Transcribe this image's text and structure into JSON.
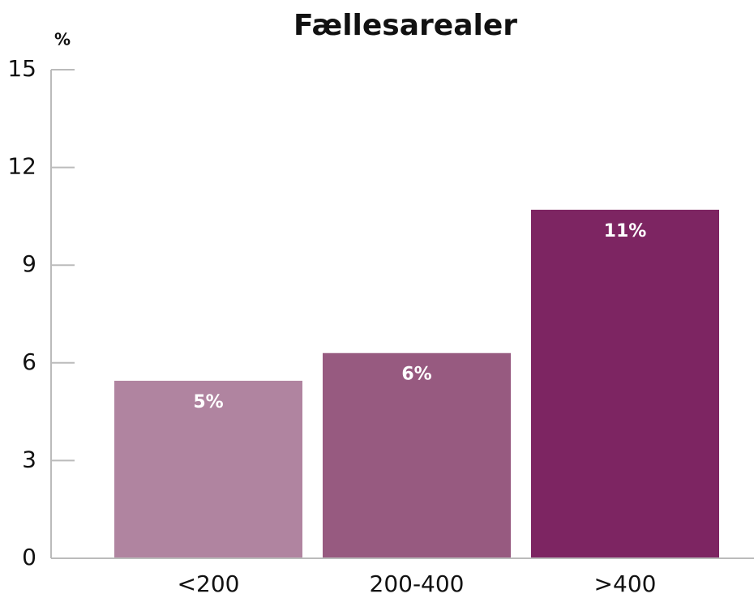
{
  "chart_data": {
    "type": "bar",
    "title": "Fællesarealer",
    "y_label": "%",
    "categories": [
      "<200",
      "200-400",
      ">400"
    ],
    "values": [
      5.45,
      6.3,
      10.7
    ],
    "value_labels": [
      "5%",
      "6%",
      "11%"
    ],
    "colors": [
      "#b084a0",
      "#975a80",
      "#7d2562"
    ],
    "ylim": [
      0,
      15
    ],
    "yticks": [
      0,
      3,
      6,
      9,
      12,
      15
    ],
    "grid": false
  }
}
